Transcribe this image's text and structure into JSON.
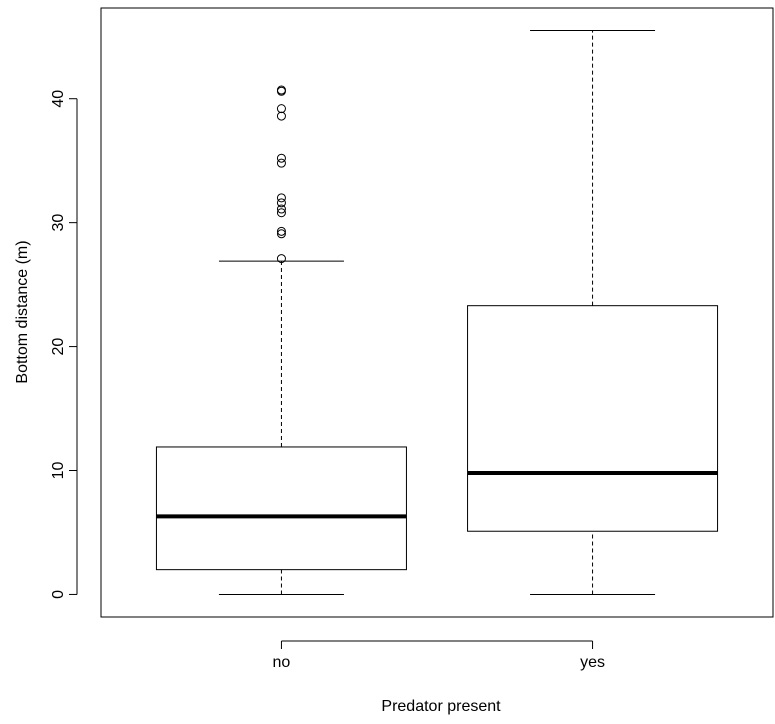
{
  "chart_data": {
    "type": "boxplot",
    "x_label": "Predator present",
    "y_label": "Bottom distance (m)",
    "categories": [
      "no",
      "yes"
    ],
    "boxes": [
      {
        "whislo": 0,
        "q1": 2.0,
        "med": 6.3,
        "q3": 11.9,
        "whishi": 26.9,
        "outliers": [
          27.1,
          29.1,
          29.3,
          30.8,
          31.1,
          31.6,
          32.0,
          34.8,
          35.2,
          38.6,
          39.2,
          40.6,
          40.7
        ]
      },
      {
        "whislo": 0,
        "q1": 5.1,
        "med": 9.8,
        "q3": 23.3,
        "whishi": 45.5,
        "outliers": []
      }
    ],
    "color": "#000000",
    "ylim": [
      -1.82,
      47.32
    ],
    "yticks": [
      0,
      10,
      20,
      30,
      40
    ]
  }
}
